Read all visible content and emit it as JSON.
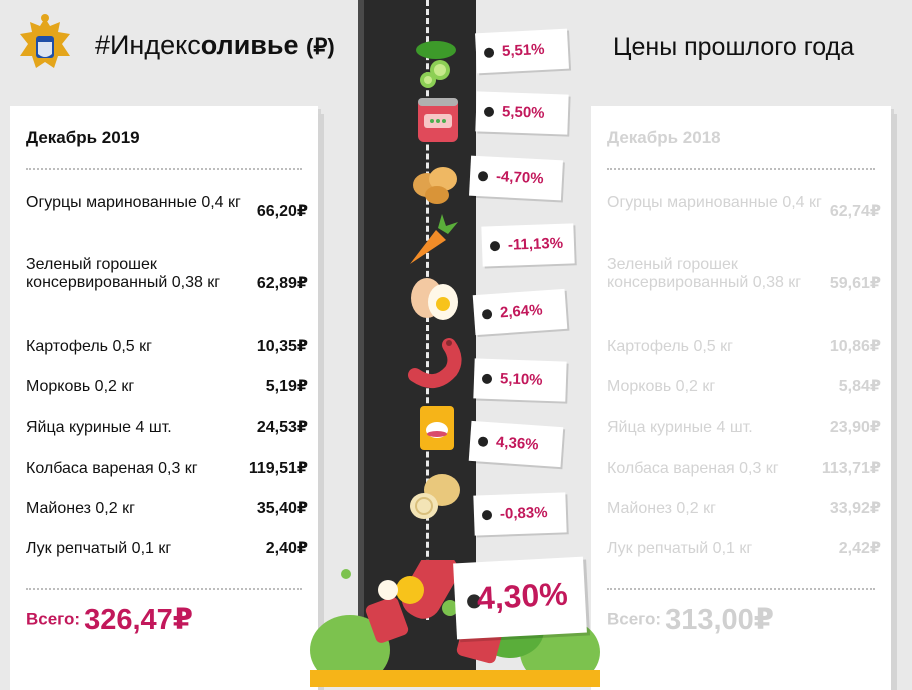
{
  "header": {
    "hashtag": "#Индекс",
    "hashtag_bold": "оливье",
    "currency": "(₽)",
    "right_title": "Цены прошлого года"
  },
  "current": {
    "heading": "Декабрь 2019",
    "items": [
      {
        "name": "Огурцы маринованные 0,4 кг",
        "price": "66,20₽"
      },
      {
        "name": "Зеленый горошек консервированный 0,38 кг",
        "price": "62,89₽"
      },
      {
        "name": "Картофель 0,5 кг",
        "price": "10,35₽"
      },
      {
        "name": "Морковь 0,2 кг",
        "price": "5,19₽"
      },
      {
        "name": "Яйца куриные 4 шт.",
        "price": "24,53₽"
      },
      {
        "name": "Колбаса вареная 0,3 кг",
        "price": "119,51₽"
      },
      {
        "name": "Майонез 0,2 кг",
        "price": "35,40₽"
      },
      {
        "name": "Лук репчатый 0,1 кг",
        "price": "2,40₽"
      }
    ],
    "total_label": "Всего:",
    "total_value": "326,47₽"
  },
  "previous": {
    "heading": "Декабрь 2018",
    "items": [
      {
        "name": "Огурцы маринованные 0,4 кг",
        "price": "62,74₽"
      },
      {
        "name": "Зеленый горошек консервированный 0,38 кг",
        "price": "59,61₽"
      },
      {
        "name": "Картофель 0,5 кг",
        "price": "10,86₽"
      },
      {
        "name": "Морковь 0,2 кг",
        "price": "5,84₽"
      },
      {
        "name": "Яйца куриные 4 шт.",
        "price": "23,90₽"
      },
      {
        "name": "Колбаса вареная 0,3 кг",
        "price": "113,71₽"
      },
      {
        "name": "Майонез 0,2 кг",
        "price": "33,92₽"
      },
      {
        "name": "Лук репчатый 0,1 кг",
        "price": "2,42₽"
      }
    ],
    "total_label": "Всего:",
    "total_value": "313,00₽"
  },
  "changes": [
    {
      "icon": "pickle-icon",
      "pct": "5,51%"
    },
    {
      "icon": "canned-peas-icon",
      "pct": "5,50%"
    },
    {
      "icon": "potato-icon",
      "pct": "-4,70%"
    },
    {
      "icon": "carrot-icon",
      "pct": "-11,13%"
    },
    {
      "icon": "egg-icon",
      "pct": "2,64%"
    },
    {
      "icon": "sausage-icon",
      "pct": "5,10%"
    },
    {
      "icon": "mayonnaise-icon",
      "pct": "4,36%"
    },
    {
      "icon": "onion-icon",
      "pct": "-0,83%"
    }
  ],
  "total_change": "4,30%",
  "colors": {
    "accent": "#c2185b",
    "road": "#2a2a2a",
    "muted": "#d3d3d3"
  }
}
